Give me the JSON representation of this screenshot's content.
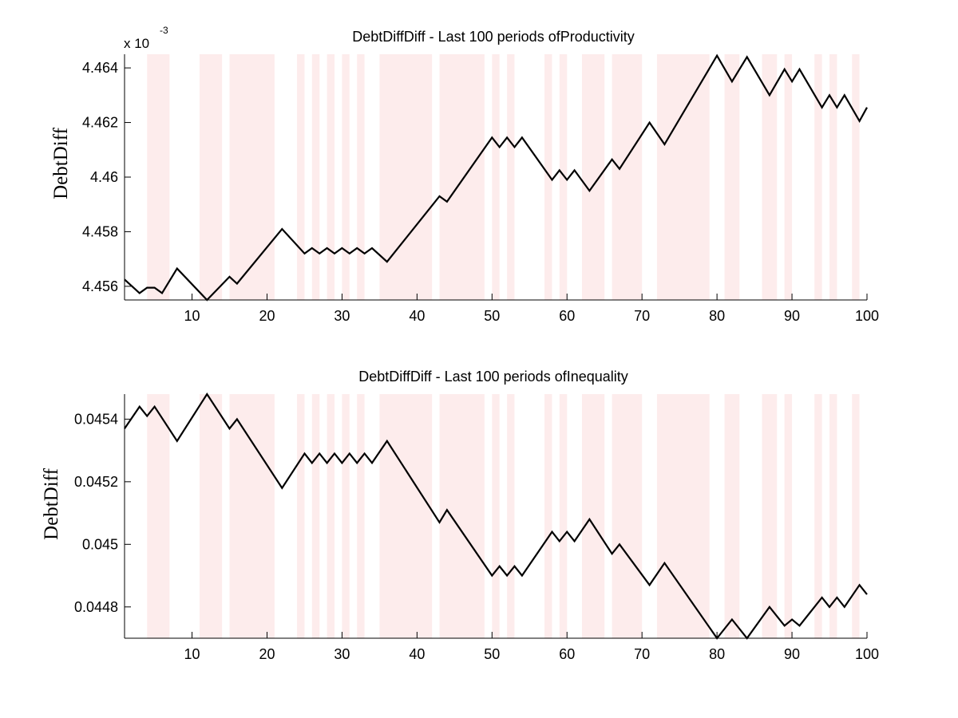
{
  "chart_data": [
    {
      "type": "line",
      "title": "DebtDiffDiff - Last 100 periods ofProductivity",
      "ylabel": "DebtDiff",
      "y_multiplier": {
        "base": "x 10",
        "exponent": "-3"
      },
      "xlim": [
        1,
        100
      ],
      "ylim": [
        4.4555,
        4.4645
      ],
      "x_ticks": [
        10,
        20,
        30,
        40,
        50,
        60,
        70,
        80,
        90,
        100
      ],
      "y_ticks": [
        4.456,
        4.458,
        4.46,
        4.462,
        4.464
      ],
      "y_tick_labels": [
        "4.456",
        "4.458",
        "4.46",
        "4.462",
        "4.464"
      ],
      "grid": false,
      "shaded_periods": [
        [
          4,
          7
        ],
        [
          11,
          14
        ],
        [
          15,
          21
        ],
        [
          24,
          25
        ],
        [
          26,
          27
        ],
        [
          28,
          29
        ],
        [
          30,
          31
        ],
        [
          32,
          33
        ],
        [
          35,
          42
        ],
        [
          43,
          49
        ],
        [
          50,
          51
        ],
        [
          52,
          53
        ],
        [
          57,
          58
        ],
        [
          59,
          60
        ],
        [
          62,
          65
        ],
        [
          66,
          70
        ],
        [
          72,
          79
        ],
        [
          81,
          83
        ],
        [
          86,
          88
        ],
        [
          89,
          90
        ],
        [
          93,
          94
        ],
        [
          95,
          96
        ],
        [
          98,
          99
        ]
      ],
      "shade_color": "#fdecec",
      "line_color": "#000000",
      "series": [
        {
          "x": [
            1,
            3,
            4,
            5,
            6,
            8,
            12,
            15,
            16,
            22,
            25,
            26,
            27,
            28,
            29,
            30,
            31,
            32,
            33,
            34,
            36,
            43,
            44,
            50,
            51,
            52,
            53,
            54,
            58,
            59,
            60,
            61,
            63,
            66,
            67,
            71,
            73,
            80,
            82,
            84,
            87,
            89,
            90,
            91,
            94,
            95,
            96,
            97,
            99,
            100
          ],
          "values": [
            4.45625,
            4.45575,
            4.45595,
            4.45595,
            4.45575,
            4.45665,
            4.4555,
            4.45635,
            4.4561,
            4.4581,
            4.4572,
            4.4574,
            4.4572,
            4.4574,
            4.4572,
            4.4574,
            4.4572,
            4.4574,
            4.4572,
            4.4574,
            4.4569,
            4.4593,
            4.4591,
            4.46145,
            4.4611,
            4.46145,
            4.4611,
            4.46145,
            4.4599,
            4.46025,
            4.4599,
            4.46025,
            4.4595,
            4.46065,
            4.4603,
            4.462,
            4.4612,
            4.46445,
            4.4635,
            4.4644,
            4.463,
            4.46395,
            4.4635,
            4.46395,
            4.46255,
            4.463,
            4.46255,
            4.463,
            4.46205,
            4.46255
          ]
        }
      ]
    },
    {
      "type": "line",
      "title": "DebtDiffDiff - Last 100 periods ofInequality",
      "ylabel": "DebtDiff",
      "xlim": [
        1,
        100
      ],
      "ylim": [
        0.0447,
        0.04548
      ],
      "x_ticks": [
        10,
        20,
        30,
        40,
        50,
        60,
        70,
        80,
        90,
        100
      ],
      "y_ticks": [
        0.0448,
        0.045,
        0.0452,
        0.0454
      ],
      "y_tick_labels": [
        "0.0448",
        "0.045",
        "0.0452",
        "0.0454"
      ],
      "grid": false,
      "shaded_periods": [
        [
          4,
          7
        ],
        [
          11,
          14
        ],
        [
          15,
          21
        ],
        [
          24,
          25
        ],
        [
          26,
          27
        ],
        [
          28,
          29
        ],
        [
          30,
          31
        ],
        [
          32,
          33
        ],
        [
          35,
          42
        ],
        [
          43,
          49
        ],
        [
          50,
          51
        ],
        [
          52,
          53
        ],
        [
          57,
          58
        ],
        [
          59,
          60
        ],
        [
          62,
          65
        ],
        [
          66,
          70
        ],
        [
          72,
          79
        ],
        [
          81,
          83
        ],
        [
          86,
          88
        ],
        [
          89,
          90
        ],
        [
          93,
          94
        ],
        [
          95,
          96
        ],
        [
          98,
          99
        ]
      ],
      "shade_color": "#fdecec",
      "line_color": "#000000",
      "series": [
        {
          "x": [
            1,
            3,
            4,
            5,
            8,
            12,
            15,
            16,
            22,
            25,
            26,
            27,
            28,
            29,
            30,
            31,
            32,
            33,
            34,
            36,
            43,
            44,
            50,
            51,
            52,
            53,
            54,
            58,
            59,
            60,
            61,
            63,
            66,
            67,
            71,
            73,
            80,
            82,
            84,
            87,
            89,
            90,
            91,
            94,
            95,
            96,
            97,
            99,
            100
          ],
          "values": [
            0.04537,
            0.04544,
            0.04541,
            0.04544,
            0.04533,
            0.04548,
            0.04537,
            0.0454,
            0.04518,
            0.04529,
            0.04526,
            0.04529,
            0.04526,
            0.04529,
            0.04526,
            0.04529,
            0.04526,
            0.04529,
            0.04526,
            0.04533,
            0.04507,
            0.04511,
            0.0449,
            0.04493,
            0.0449,
            0.04493,
            0.0449,
            0.04504,
            0.04501,
            0.04504,
            0.04501,
            0.04508,
            0.04497,
            0.045,
            0.04487,
            0.04494,
            0.0447,
            0.04476,
            0.0447,
            0.0448,
            0.04474,
            0.04476,
            0.04474,
            0.04483,
            0.0448,
            0.04483,
            0.0448,
            0.04487,
            0.04484
          ]
        }
      ]
    }
  ]
}
